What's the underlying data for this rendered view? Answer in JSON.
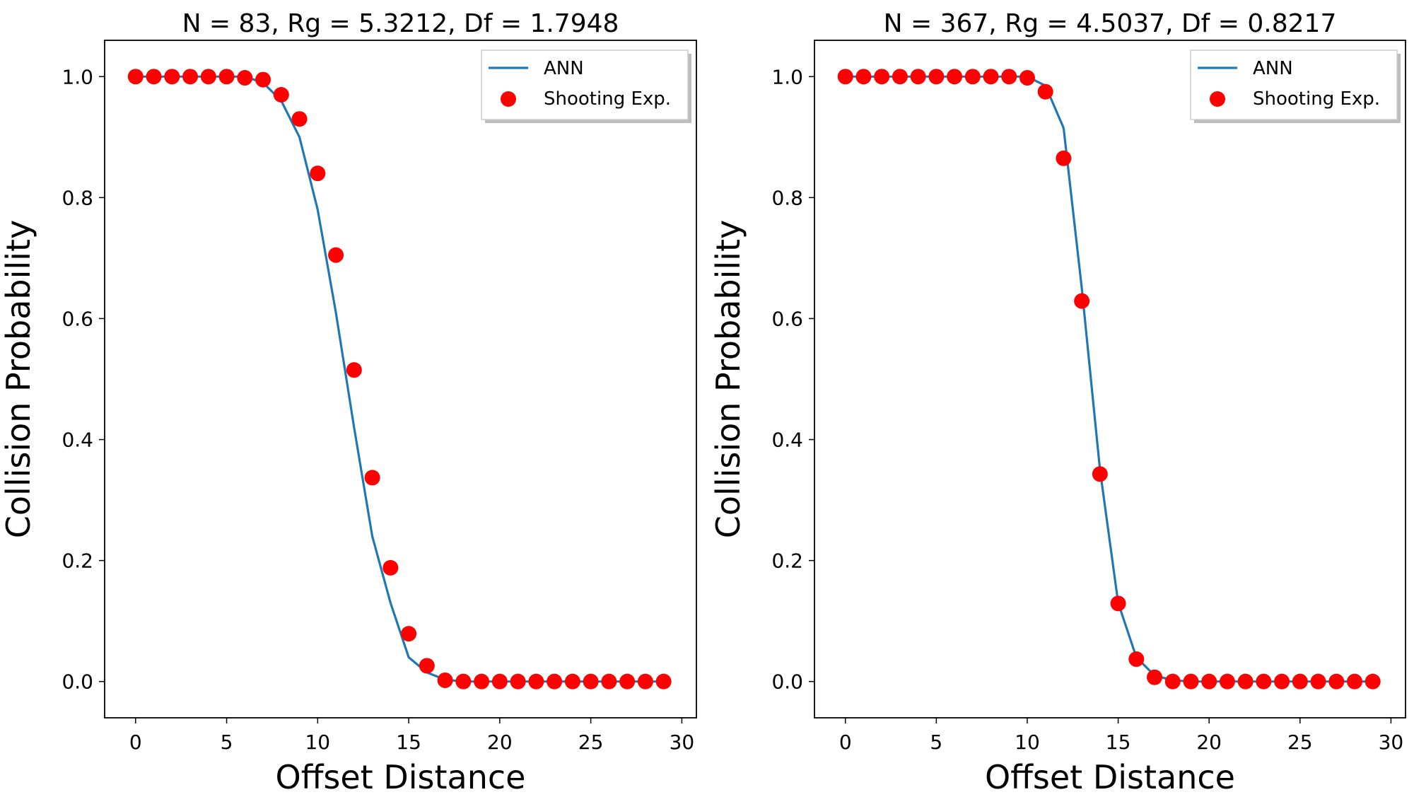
{
  "chart_data": [
    {
      "type": "line",
      "title": "N = 83, Rg = 5.3212, Df = 1.7948",
      "xlabel": "Offset Distance",
      "ylabel": "Collision Probability",
      "xlim": [
        -1.7,
        30.8
      ],
      "ylim": [
        -0.06,
        1.06
      ],
      "xticks": [
        0,
        5,
        10,
        15,
        20,
        25,
        30
      ],
      "xtick_labels": [
        "0",
        "5",
        "10",
        "15",
        "20",
        "25",
        "30"
      ],
      "yticks": [
        0.0,
        0.2,
        0.4,
        0.6,
        0.8,
        1.0
      ],
      "ytick_labels": [
        "0.0",
        "0.2",
        "0.4",
        "0.6",
        "0.8",
        "1.0"
      ],
      "grid": false,
      "legend_position": "top-right",
      "series": [
        {
          "name": "ANN",
          "kind": "line",
          "color": "#1f77b4",
          "x": [
            0,
            1,
            2,
            3,
            4,
            5,
            6,
            7,
            8,
            9,
            10,
            11,
            12,
            13,
            14,
            15,
            16,
            17,
            18,
            19,
            20,
            21,
            22,
            23,
            24,
            25,
            26,
            27,
            28,
            29
          ],
          "y": [
            1.0,
            1.0,
            1.0,
            1.0,
            1.0,
            1.0,
            1.0,
            0.99,
            0.96,
            0.9,
            0.78,
            0.61,
            0.42,
            0.24,
            0.13,
            0.04,
            0.015,
            0.003,
            0,
            0,
            0,
            0,
            0,
            0,
            0,
            0,
            0,
            0,
            0,
            0
          ]
        },
        {
          "name": "Shooting Exp.",
          "kind": "scatter",
          "color": "#ff0000",
          "x": [
            0,
            1,
            2,
            3,
            4,
            5,
            6,
            7,
            8,
            9,
            10,
            11,
            12,
            13,
            14,
            15,
            16,
            17,
            18,
            19,
            20,
            21,
            22,
            23,
            24,
            25,
            26,
            27,
            28,
            29
          ],
          "y": [
            1.0,
            1.0,
            1.0,
            1.0,
            1.0,
            1.0,
            0.998,
            0.995,
            0.97,
            0.93,
            0.84,
            0.705,
            0.515,
            0.337,
            0.188,
            0.079,
            0.026,
            0.002,
            0,
            0,
            0,
            0,
            0,
            0,
            0,
            0,
            0,
            0,
            0,
            0
          ]
        }
      ]
    },
    {
      "type": "line",
      "title": "N = 367, Rg = 4.5037, Df = 0.8217",
      "xlabel": "Offset Distance",
      "ylabel": "Collision Probability",
      "xlim": [
        -1.7,
        30.8
      ],
      "ylim": [
        -0.06,
        1.06
      ],
      "xticks": [
        0,
        5,
        10,
        15,
        20,
        25,
        30
      ],
      "xtick_labels": [
        "0",
        "5",
        "10",
        "15",
        "20",
        "25",
        "30"
      ],
      "yticks": [
        0.0,
        0.2,
        0.4,
        0.6,
        0.8,
        1.0
      ],
      "ytick_labels": [
        "0.0",
        "0.2",
        "0.4",
        "0.6",
        "0.8",
        "1.0"
      ],
      "grid": false,
      "legend_position": "top-right",
      "series": [
        {
          "name": "ANN",
          "kind": "line",
          "color": "#1f77b4",
          "x": [
            0,
            1,
            2,
            3,
            4,
            5,
            6,
            7,
            8,
            9,
            10,
            11,
            12,
            13,
            14,
            15,
            16,
            17,
            18,
            19,
            20,
            21,
            22,
            23,
            24,
            25,
            26,
            27,
            28,
            29
          ],
          "y": [
            1.0,
            1.0,
            1.0,
            1.0,
            1.0,
            1.0,
            1.0,
            1.0,
            1.0,
            1.0,
            1.0,
            0.985,
            0.915,
            0.65,
            0.35,
            0.13,
            0.04,
            0.01,
            0.002,
            0,
            0,
            0,
            0,
            0,
            0,
            0,
            0,
            0,
            0,
            0
          ]
        },
        {
          "name": "Shooting Exp.",
          "kind": "scatter",
          "color": "#ff0000",
          "x": [
            0,
            1,
            2,
            3,
            4,
            5,
            6,
            7,
            8,
            9,
            10,
            11,
            12,
            13,
            14,
            15,
            16,
            17,
            18,
            19,
            20,
            21,
            22,
            23,
            24,
            25,
            26,
            27,
            28,
            29
          ],
          "y": [
            1.0,
            1.0,
            1.0,
            1.0,
            1.0,
            1.0,
            1.0,
            1.0,
            1.0,
            1.0,
            0.998,
            0.975,
            0.865,
            0.629,
            0.343,
            0.129,
            0.037,
            0.007,
            0,
            0,
            0,
            0,
            0,
            0,
            0,
            0,
            0,
            0,
            0,
            0
          ]
        }
      ]
    }
  ]
}
